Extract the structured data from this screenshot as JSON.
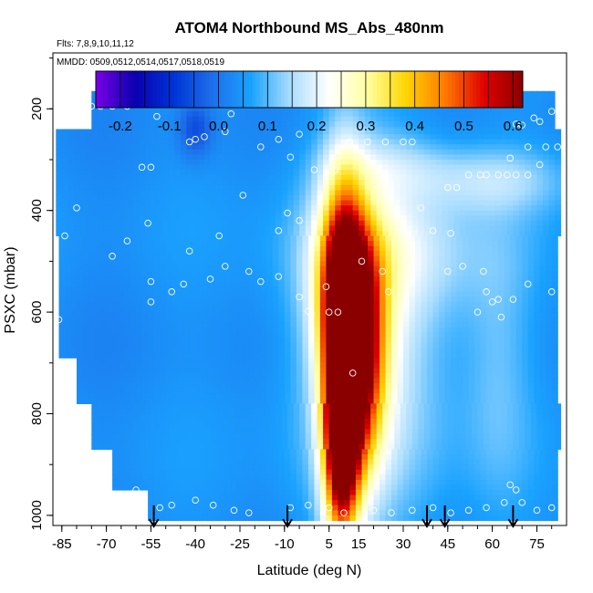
{
  "chart_data": {
    "type": "heatmap",
    "title": "ATOM4 Northbound MS_Abs_480nm",
    "flights_note": "Flts: 7,8,9,10,11,12",
    "dates_note": "MMDD: 0509,0512,0514,0517,0518,0519",
    "xlabel": "Latitude (deg N)",
    "ylabel": "PSXC (mbar)",
    "xlim": [
      -88,
      85
    ],
    "ylim": [
      1020,
      90
    ],
    "x_ticks": [
      -85,
      -70,
      -55,
      -40,
      -25,
      -10,
      5,
      15,
      30,
      45,
      60,
      75
    ],
    "x_tick_labels": [
      "-85",
      "-70",
      "-55",
      "-40",
      "-25",
      "-10",
      "5",
      "15",
      "30",
      "45",
      "60",
      "75"
    ],
    "y_ticks": [
      200,
      400,
      600,
      800,
      1000
    ],
    "y_tick_labels": [
      "200",
      "400",
      "600",
      "800",
      "1000"
    ],
    "colorbar": {
      "range": [
        -0.25,
        0.62
      ],
      "ticks": [
        -0.2,
        -0.1,
        0.0,
        0.1,
        0.2,
        0.3,
        0.4,
        0.5,
        0.6
      ],
      "tick_labels": [
        "-0.2",
        "-0.1",
        "0.0",
        "0.1",
        "0.2",
        "0.3",
        "0.4",
        "0.5",
        "0.6"
      ],
      "colors": [
        "#7a00e6",
        "#0a00b0",
        "#0033d6",
        "#1d6fea",
        "#1aa2ff",
        "#a8dcff",
        "#ffffff",
        "#ffffa0",
        "#ffd400",
        "#ff7a00",
        "#e00000",
        "#8a0000"
      ]
    },
    "background_value": 0.04,
    "layers": [
      {
        "p_top": 165,
        "p_bot": 240,
        "lat_min": -75,
        "lat_max": 80,
        "value": 0.05
      },
      {
        "p_top": 240,
        "p_bot": 450,
        "lat_min": -87,
        "lat_max": 82,
        "value": 0.04
      },
      {
        "p_top": 450,
        "p_bot": 690,
        "lat_min": -86,
        "lat_max": 82,
        "value": 0.04
      },
      {
        "p_top": 690,
        "p_bot": 780,
        "lat_min": -80,
        "lat_max": 82,
        "value": 0.04
      },
      {
        "p_top": 780,
        "p_bot": 870,
        "lat_min": -75,
        "lat_max": 82,
        "value": 0.04
      },
      {
        "p_top": 870,
        "p_bot": 950,
        "lat_min": -68,
        "lat_max": 82,
        "value": 0.04
      },
      {
        "p_top": 950,
        "p_bot": 1010,
        "lat_min": -56,
        "lat_max": 82,
        "value": 0.05
      }
    ],
    "features": [
      {
        "lat": 10,
        "p": 640,
        "dlat": 5,
        "dp": 200,
        "value": 0.56
      },
      {
        "lat": 9,
        "p": 880,
        "dlat": 4,
        "dp": 130,
        "value": 0.47
      },
      {
        "lat": 12,
        "p": 560,
        "dlat": 8,
        "dp": 120,
        "value": 0.3
      },
      {
        "lat": 16,
        "p": 720,
        "dlat": 6,
        "dp": 140,
        "value": 0.35
      },
      {
        "lat": 20,
        "p": 650,
        "dlat": 18,
        "dp": 260,
        "value": 0.2
      },
      {
        "lat": 28,
        "p": 480,
        "dlat": 22,
        "dp": 90,
        "value": 0.12
      },
      {
        "lat": 60,
        "p": 340,
        "dlat": 18,
        "dp": 45,
        "value": 0.14
      },
      {
        "lat": 25,
        "p": 310,
        "dlat": 15,
        "dp": 40,
        "value": 0.1
      },
      {
        "lat": 62,
        "p": 700,
        "dlat": 8,
        "dp": 200,
        "value": 0.1
      },
      {
        "lat": -40,
        "p": 240,
        "dlat": 4,
        "dp": 40,
        "value": -0.06
      }
    ],
    "observation_points": [
      [
        -86,
        215
      ],
      [
        -83,
        215
      ],
      [
        -78,
        210
      ],
      [
        -75,
        195
      ],
      [
        -72,
        195
      ],
      [
        -68,
        195
      ],
      [
        -63,
        195
      ],
      [
        -53,
        215
      ],
      [
        -40,
        260
      ],
      [
        -42,
        265
      ],
      [
        -37,
        255
      ],
      [
        -30,
        245
      ],
      [
        -28,
        210
      ],
      [
        -18,
        275
      ],
      [
        -12,
        260
      ],
      [
        -5,
        250
      ],
      [
        -8,
        295
      ],
      [
        0,
        320
      ],
      [
        7,
        320
      ],
      [
        12,
        265
      ],
      [
        18,
        265
      ],
      [
        24,
        265
      ],
      [
        30,
        265
      ],
      [
        33,
        265
      ],
      [
        45,
        355
      ],
      [
        48,
        355
      ],
      [
        52,
        330
      ],
      [
        56,
        330
      ],
      [
        58,
        330
      ],
      [
        62,
        330
      ],
      [
        65,
        330
      ],
      [
        68,
        330
      ],
      [
        72,
        330
      ],
      [
        76,
        310
      ],
      [
        72,
        275
      ],
      [
        78,
        275
      ],
      [
        82,
        275
      ],
      [
        80,
        205
      ],
      [
        76,
        225
      ],
      [
        74,
        218
      ],
      [
        70,
        232
      ],
      [
        66,
        297
      ],
      [
        68,
        230
      ],
      [
        -58,
        315
      ],
      [
        -55,
        315
      ],
      [
        -56,
        425
      ],
      [
        -80,
        395
      ],
      [
        -84,
        450
      ],
      [
        -68,
        490
      ],
      [
        -55,
        540
      ],
      [
        -48,
        560
      ],
      [
        -42,
        480
      ],
      [
        -35,
        535
      ],
      [
        -30,
        510
      ],
      [
        -22,
        520
      ],
      [
        -18,
        540
      ],
      [
        -12,
        440
      ],
      [
        -5,
        420
      ],
      [
        -9,
        405
      ],
      [
        -2,
        598
      ],
      [
        -1,
        605
      ],
      [
        5,
        600
      ],
      [
        8,
        600
      ],
      [
        13,
        720
      ],
      [
        23,
        520
      ],
      [
        25,
        560
      ],
      [
        30,
        440
      ],
      [
        40,
        440
      ],
      [
        46,
        445
      ],
      [
        50,
        510
      ],
      [
        57,
        520
      ],
      [
        58,
        560
      ],
      [
        62,
        575
      ],
      [
        60,
        580
      ],
      [
        67,
        575
      ],
      [
        72,
        545
      ],
      [
        80,
        560
      ],
      [
        -86,
        615
      ],
      [
        -83,
        815
      ],
      [
        -63,
        460
      ],
      [
        -55,
        580
      ],
      [
        -44,
        545
      ],
      [
        -32,
        450
      ],
      [
        -24,
        370
      ],
      [
        -12,
        530
      ],
      [
        -5,
        570
      ],
      [
        4,
        550
      ],
      [
        16,
        500
      ],
      [
        36,
        395
      ],
      [
        45,
        520
      ],
      [
        55,
        600
      ],
      [
        63,
        610
      ],
      [
        -60,
        950
      ],
      [
        -52,
        985
      ],
      [
        -48,
        980
      ],
      [
        -40,
        970
      ],
      [
        -34,
        980
      ],
      [
        -27,
        990
      ],
      [
        -22,
        995
      ],
      [
        -8,
        985
      ],
      [
        -2,
        980
      ],
      [
        5,
        985
      ],
      [
        10,
        995
      ],
      [
        20,
        990
      ],
      [
        26,
        995
      ],
      [
        33,
        990
      ],
      [
        40,
        985
      ],
      [
        46,
        995
      ],
      [
        52,
        990
      ],
      [
        58,
        985
      ],
      [
        64,
        975
      ],
      [
        70,
        975
      ],
      [
        75,
        990
      ],
      [
        80,
        985
      ],
      [
        66,
        940
      ],
      [
        68,
        950
      ]
    ],
    "arrow_latitudes": [
      -54,
      -9,
      38,
      44,
      67
    ]
  }
}
